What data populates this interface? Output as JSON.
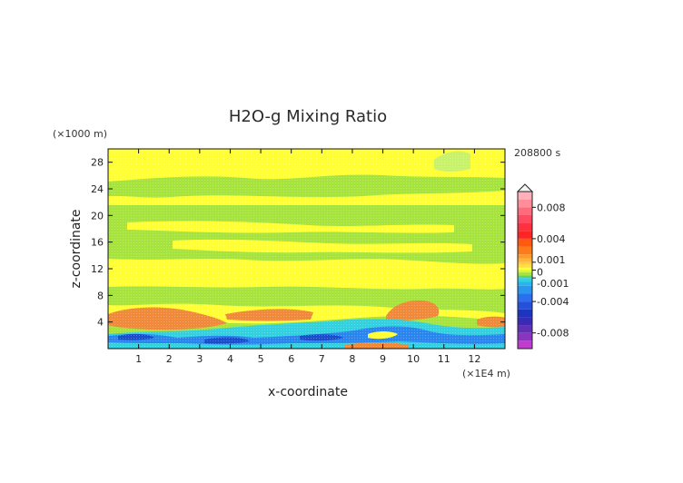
{
  "chart_data": {
    "type": "heatmap",
    "title": "H2O-g Mixing Ratio",
    "xlabel": "x-coordinate",
    "ylabel": "z-coordinate",
    "x_unit": "(×1E4 m)",
    "y_unit": "(×1000 m)",
    "time_label": "208800 s",
    "xlim": [
      0,
      13
    ],
    "ylim": [
      0,
      30
    ],
    "xticks": [
      "1",
      "2",
      "3",
      "4",
      "5",
      "6",
      "7",
      "8",
      "9",
      "10",
      "11",
      "12"
    ],
    "yticks": [
      "4",
      "8",
      "12",
      "16",
      "20",
      "24",
      "28"
    ],
    "colorbar": {
      "range": [
        -0.01,
        0.01
      ],
      "tick_labels": [
        "0.008",
        "0.004",
        "0.001",
        "0",
        "-0.001",
        "-0.004",
        "-0.008"
      ]
    },
    "colors": {
      "background": "#ffff33",
      "green": "#9fe13a",
      "light_green": "#c8f26a",
      "orange": "#f08a3a",
      "cyan": "#33d0e0",
      "blue": "#2080ee",
      "dark_blue": "#1848c8"
    }
  }
}
